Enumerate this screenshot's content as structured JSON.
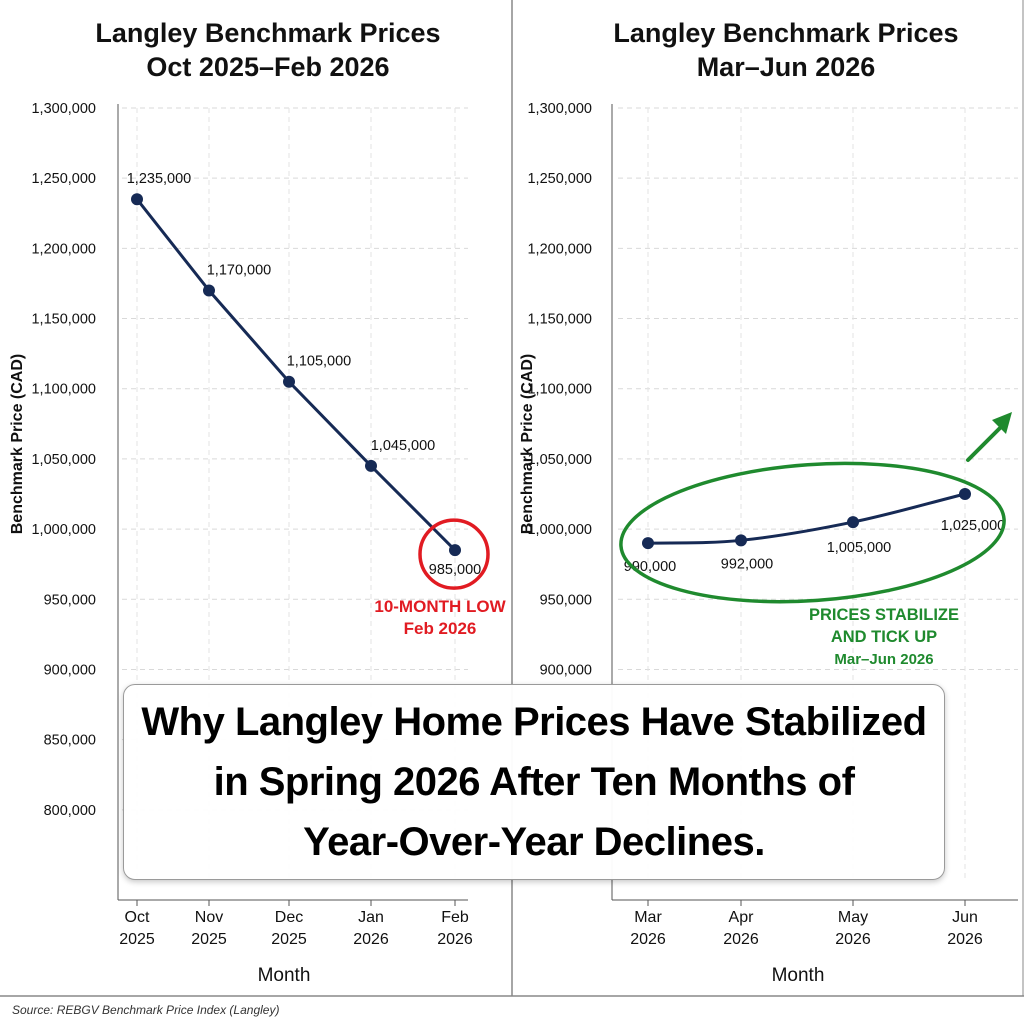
{
  "chart_data": [
    {
      "type": "line",
      "title": "Langley Benchmark Prices\nOct 2025–Feb 2026",
      "xlabel": "Month",
      "ylabel": "Benchmark Price (CAD)",
      "ylim": [
        750000,
        1300000
      ],
      "yticks": [
        800000,
        850000,
        900000,
        950000,
        1000000,
        1050000,
        1100000,
        1150000,
        1200000,
        1250000,
        1300000
      ],
      "ytick_labels": [
        "800,000",
        "850,000",
        "900,000",
        "950,000",
        "1,000,000",
        "1,050,000",
        "1,100,000",
        "1,150,000",
        "1,200,000",
        "1,250,000",
        "1,300,000"
      ],
      "categories": [
        "Oct\n2025",
        "Nov\n2025",
        "Dec\n2025",
        "Jan\n2026",
        "Feb\n2026"
      ],
      "values": [
        1235000,
        1170000,
        1105000,
        1045000,
        985000
      ],
      "data_labels": [
        "1,235,000",
        "1,170,000",
        "1,105,000",
        "1,045,000",
        "985,000"
      ],
      "grid": true,
      "line_color": "#162a55",
      "annotation": {
        "text": "10-MONTH LOW\nFeb 2026",
        "color": "#e11b22",
        "target_index": 4
      }
    },
    {
      "type": "line",
      "title": "Langley Benchmark Prices\nMar–Jun 2026",
      "xlabel": "Month",
      "ylabel": "Benchmark Price (CAD)",
      "ylim": [
        750000,
        1300000
      ],
      "yticks": [
        900000,
        950000,
        1000000,
        1050000,
        1100000,
        1150000,
        1200000,
        1250000,
        1300000
      ],
      "ytick_labels": [
        "900,000",
        "950,000",
        "1,000,000",
        "1,050,000",
        "1,100,000",
        "1,150,000",
        "1,200,000",
        "1,250,000",
        "1,300,000"
      ],
      "categories": [
        "Mar\n2026",
        "Apr\n2026",
        "May\n2026",
        "Jun\n2026"
      ],
      "values": [
        990000,
        992000,
        1005000,
        1025000
      ],
      "data_labels": [
        "990,000",
        "992,000",
        "1,005,000",
        "1,025,000"
      ],
      "grid": true,
      "line_color": "#162a55",
      "annotation": {
        "text": "PRICES STABILIZE\nAND TICK UP\nMar–Jun 2026",
        "color": "#1f8a2e"
      }
    }
  ],
  "callout": "Why Langley Home Prices Have Stabilized\nin Spring 2026 After Ten Months of\nYear-Over-Year Declines.",
  "source": "Source: REBGV Benchmark Price Index (Langley)",
  "colors": {
    "series": "#162a55",
    "low_annotation": "#e11b22",
    "stabilize_annotation": "#1f8a2e",
    "grid": "#d9d9d9",
    "divider": "#888888"
  }
}
